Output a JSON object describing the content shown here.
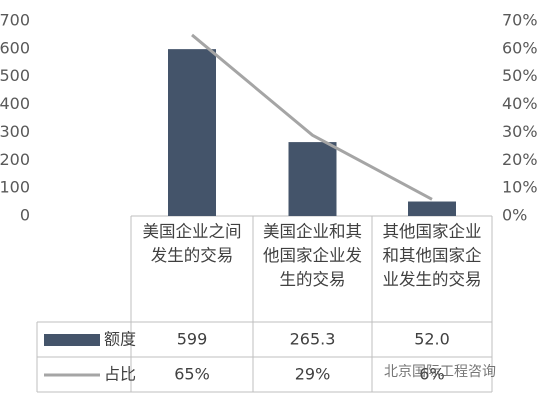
{
  "chart_data": {
    "type": "bar",
    "categories": [
      "美国企业之间发生的交易",
      "美国企业和其他国家企业发生的交易",
      "其他国家企业和其他国家企业发生的交易"
    ],
    "series": [
      {
        "name": "额度",
        "type": "bar",
        "color": "#44546a",
        "values": [
          599,
          265.3,
          52.0
        ],
        "value_labels": [
          "599",
          "265.3",
          "52.0"
        ]
      },
      {
        "name": "占比",
        "type": "line",
        "axis": "y2",
        "color": "#a5a5a5",
        "values": [
          65,
          29,
          6
        ],
        "value_labels": [
          "65%",
          "29%",
          "6%"
        ]
      }
    ],
    "ylim": [
      0,
      700
    ],
    "yticks": [
      0,
      100,
      200,
      300,
      400,
      500,
      600,
      700
    ],
    "y2lim": [
      0,
      70
    ],
    "y2ticks": [
      {
        "value": 0,
        "label": "0%"
      },
      {
        "value": 10,
        "label": "10%"
      },
      {
        "value": 20,
        "label": "20%"
      },
      {
        "value": 30,
        "label": "30%"
      },
      {
        "value": 40,
        "label": "40%"
      },
      {
        "value": 50,
        "label": "50%"
      },
      {
        "value": 60,
        "label": "60%"
      },
      {
        "value": 70,
        "label": "70%"
      }
    ],
    "watermark": "北京国际工程咨询"
  }
}
